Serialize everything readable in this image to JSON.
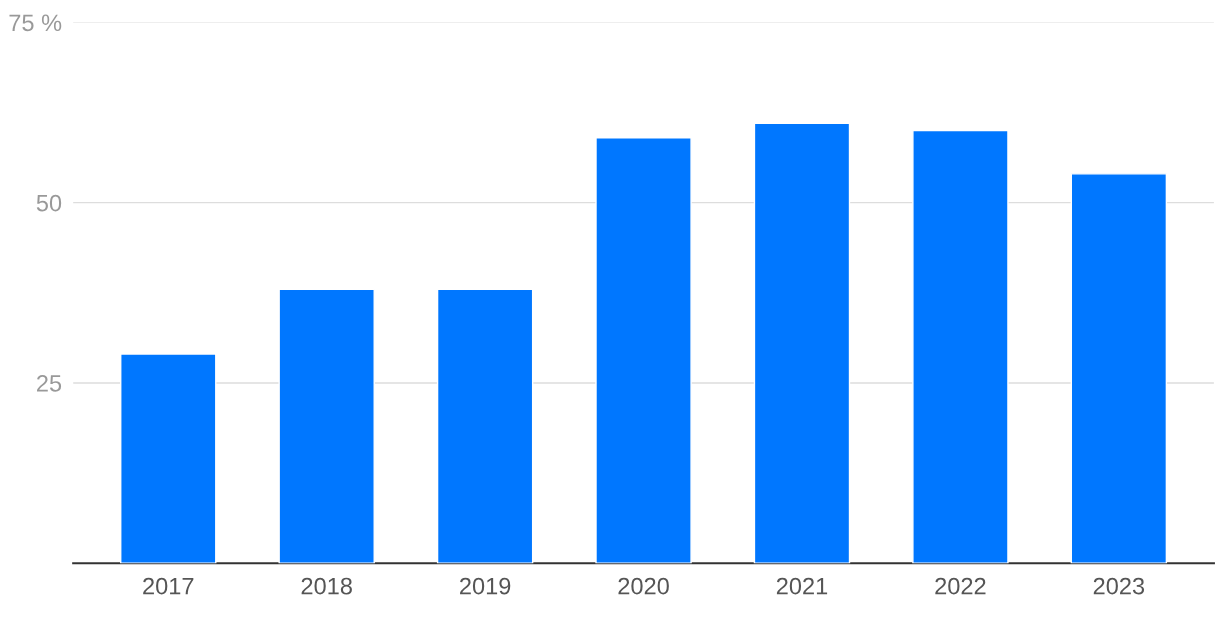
{
  "chart_data": {
    "type": "bar",
    "categories": [
      "2017",
      "2018",
      "2019",
      "2020",
      "2021",
      "2022",
      "2023"
    ],
    "values": [
      29,
      38,
      38,
      59,
      61,
      60,
      54
    ],
    "color": "#0077ff",
    "ylim": [
      0,
      75
    ],
    "yticks": [
      25,
      50,
      {
        "value": 75,
        "label": "75 %"
      }
    ],
    "grid": "y"
  }
}
